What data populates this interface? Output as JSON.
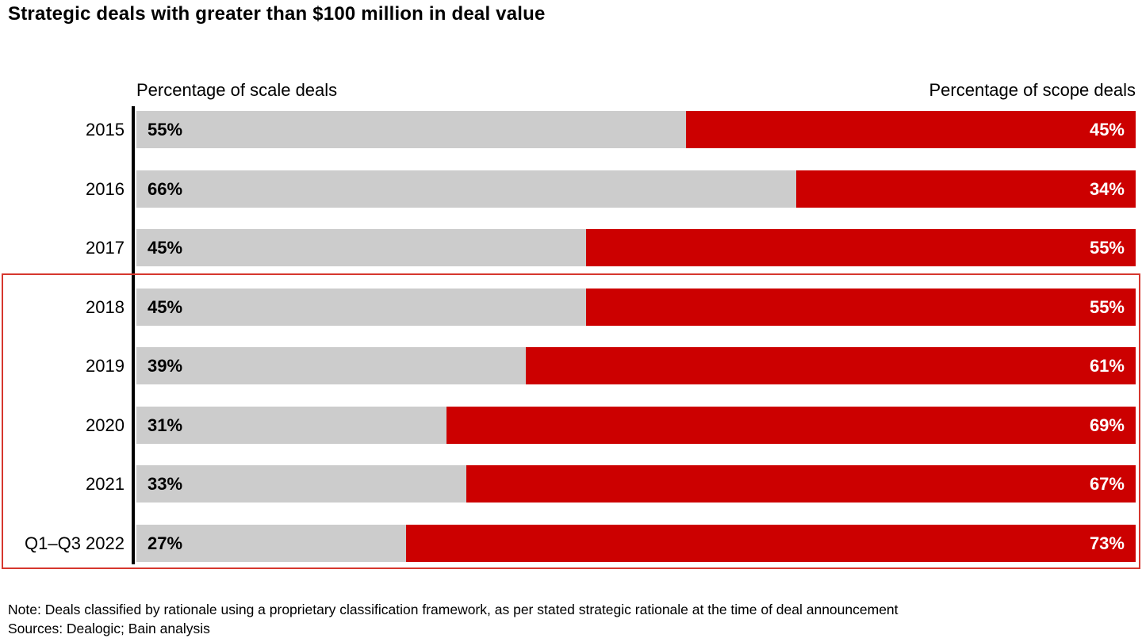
{
  "title": "Strategic deals with greater than $100 million in deal value",
  "headers": {
    "left": "Percentage of scale deals",
    "right": "Percentage of scope deals"
  },
  "colors": {
    "scale_bar": "#cccccc",
    "scope_bar": "#cc0000",
    "highlight_border": "#d6372e",
    "axis": "#000000",
    "scale_label_text": "#000000",
    "scope_label_text": "#ffffff"
  },
  "chart_data": {
    "type": "bar",
    "orientation": "horizontal-stacked",
    "title": "Strategic deals with greater than $100 million in deal value",
    "categories": [
      "2015",
      "2016",
      "2017",
      "2018",
      "2019",
      "2020",
      "2021",
      "Q1–Q3 2022"
    ],
    "series": [
      {
        "name": "Percentage of scale deals",
        "color": "#cccccc",
        "values": [
          55,
          66,
          45,
          45,
          39,
          31,
          33,
          27
        ]
      },
      {
        "name": "Percentage of scope deals",
        "color": "#cc0000",
        "values": [
          45,
          34,
          55,
          55,
          61,
          69,
          67,
          73
        ]
      }
    ],
    "value_suffix": "%",
    "xlim": [
      0,
      100
    ],
    "grid": false,
    "legend_position": "column-headers",
    "highlighted_categories": [
      "2018",
      "2019",
      "2020",
      "2021",
      "Q1–Q3 2022"
    ]
  },
  "footer": {
    "note": "Note: Deals classified by rationale using a proprietary classification framework, as per stated strategic rationale at the time of deal announcement",
    "sources": "Sources: Dealogic; Bain analysis"
  }
}
